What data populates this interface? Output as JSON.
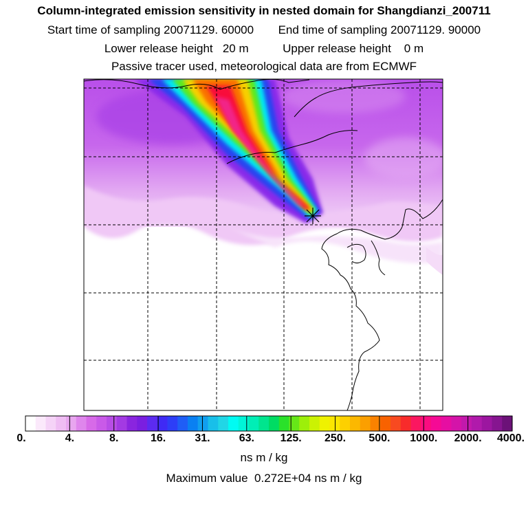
{
  "header": {
    "title": "Column-integrated emission sensitivity in nested domain for Shangdianzi_200711",
    "start_label": "Start time of sampling 20071129. 60000",
    "end_label": "End time of sampling 20071129. 90000",
    "lower_label": "Lower release height   20 m",
    "upper_label": "Upper release height    0 m",
    "tracer_note": "Passive tracer used, meteorological data are from ECMWF"
  },
  "colorbar": {
    "tick_labels": [
      "0.",
      "4.",
      "8.",
      "16.",
      "31.",
      "63.",
      "125.",
      "250.",
      "500.",
      "1000.",
      "2000.",
      "4000."
    ],
    "colors": [
      "#ffffff",
      "#fbe9fb",
      "#f5d3f7",
      "#efbdf3",
      "#e8a6ef",
      "#df86ec",
      "#d76ae8",
      "#c95ae8",
      "#b84de6",
      "#a33ae3",
      "#8a25df",
      "#7a1fe0",
      "#5c2bf0",
      "#3f2af5",
      "#2d3ef7",
      "#1f5ef6",
      "#0a80f2",
      "#119fef",
      "#19bfe9",
      "#21d6e6",
      "#00fbf3",
      "#00f5d8",
      "#00eeb6",
      "#00e58e",
      "#00dc63",
      "#2ae12a",
      "#66e718",
      "#9def0a",
      "#cbf203",
      "#eff200",
      "#fbe600",
      "#fdd000",
      "#fcb800",
      "#fb9f00",
      "#fa8200",
      "#f86200",
      "#f84a20",
      "#f82b2b",
      "#fb1760",
      "#fb0c80",
      "#f50a95",
      "#e60ea2",
      "#d414a9",
      "#c219ac",
      "#b01aab",
      "#9c16a0",
      "#861590",
      "#6c1278"
    ],
    "units": "ns m / kg",
    "max_value_label": "Maximum value  0.272E+04 ns m / kg"
  },
  "map": {
    "receptor_name": "Shangdianzi",
    "background_color": "#d88ef0",
    "plume_core_color": "#f80c3a",
    "grid_style": "dashed"
  }
}
